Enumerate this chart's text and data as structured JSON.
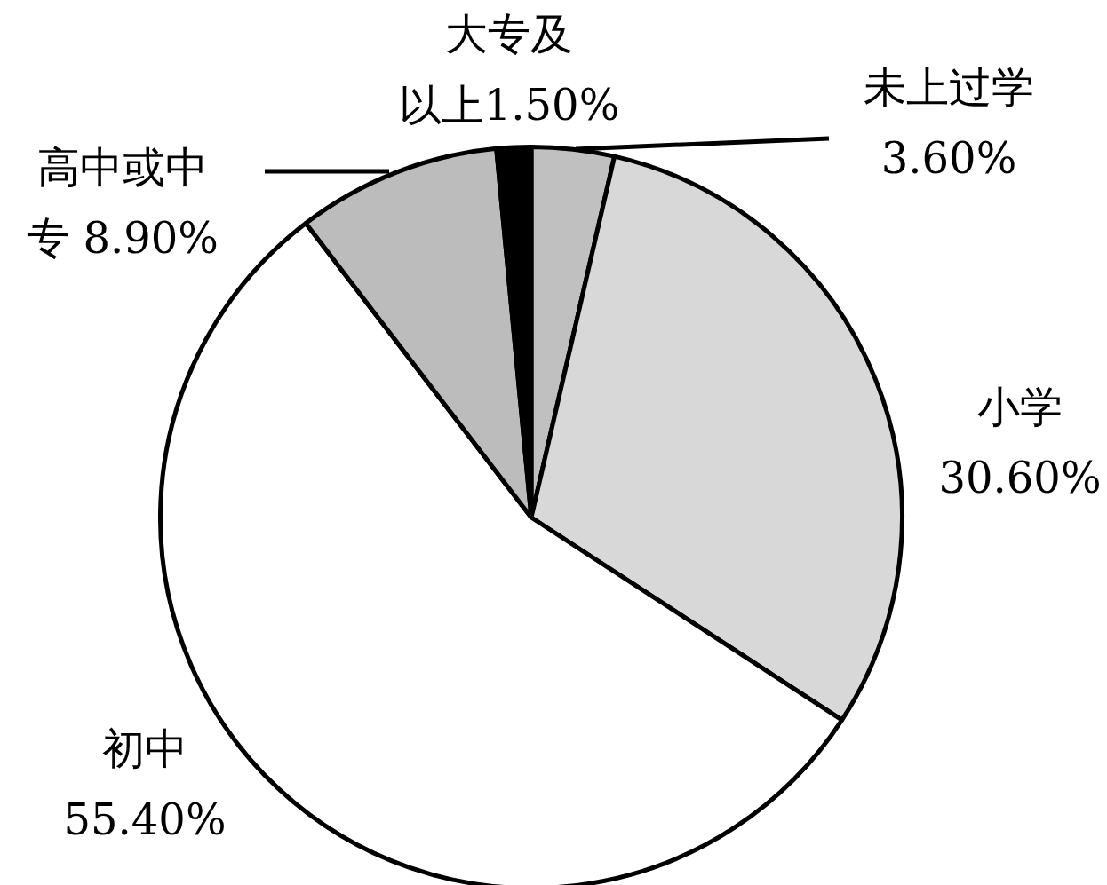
{
  "chart_data": {
    "type": "pie",
    "categories": [
      "未上过学",
      "小学",
      "初中",
      "高中或中专",
      "大专及以上"
    ],
    "values": [
      3.6,
      30.6,
      55.4,
      8.9,
      1.5
    ],
    "value_labels": [
      "3.60%",
      "30.60%",
      "55.40%",
      "8.90%",
      "1.50%"
    ],
    "colors": [
      "#c0c0c0",
      "#d8d8d8",
      "#ffffff",
      "#bcbcbc",
      "#000000"
    ],
    "legend": false
  }
}
